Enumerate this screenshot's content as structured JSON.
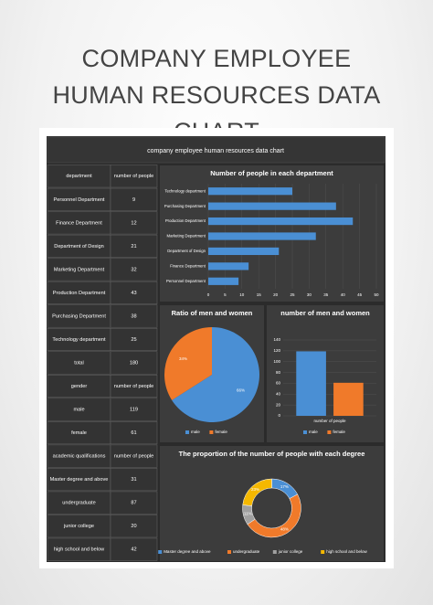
{
  "header": {
    "title": "COMPANY EMPLOYEE HUMAN RESOURCES DATA CHART"
  },
  "panel": {
    "title": "company employee human resources data chart"
  },
  "table": {
    "rows": [
      [
        "department",
        "number of people"
      ],
      [
        "Personnel Department",
        9
      ],
      [
        "Finance Department",
        12
      ],
      [
        "Department of Design",
        21
      ],
      [
        "Marketing Department",
        32
      ],
      [
        "Production Department",
        43
      ],
      [
        "Purchasing Department",
        38
      ],
      [
        "Technology department",
        25
      ],
      [
        "total",
        180
      ],
      [
        "gender",
        "number of people"
      ],
      [
        "male",
        119
      ],
      [
        "female",
        61
      ],
      [
        "academic qualifications",
        "number of people"
      ],
      [
        "Master degree and above",
        31
      ],
      [
        "undergraduate",
        87
      ],
      [
        "junior college",
        20
      ],
      [
        "high school and below",
        42
      ]
    ]
  },
  "chart_data": [
    {
      "type": "bar",
      "horizontal": true,
      "title": "Number of people in each department",
      "categories": [
        "Technology department",
        "Purchasing Department",
        "Production Department",
        "Marketing Department",
        "Department of Design",
        "Finance Department",
        "Personnel Department"
      ],
      "values": [
        25,
        38,
        43,
        32,
        21,
        12,
        9
      ],
      "color": "#4a8fd4",
      "xlim": [
        0,
        50
      ],
      "xticks": [
        0,
        5,
        10,
        15,
        20,
        25,
        30,
        35,
        40,
        45,
        50
      ],
      "grid": true
    },
    {
      "type": "pie",
      "title": "Ratio of men and women",
      "categories": [
        "male",
        "female"
      ],
      "values": [
        66,
        34
      ],
      "value_labels": [
        "66%",
        "34%"
      ],
      "colors": [
        "#4a8fd4",
        "#f07a2a"
      ],
      "legend": "bottom"
    },
    {
      "type": "bar",
      "title": "number of men and women",
      "categories": [
        "number of people"
      ],
      "series": [
        {
          "name": "male",
          "color": "#4a8fd4",
          "values": [
            119
          ]
        },
        {
          "name": "female",
          "color": "#f07a2a",
          "values": [
            61
          ]
        }
      ],
      "ylim": [
        0,
        140
      ],
      "yticks": [
        0,
        20,
        40,
        60,
        80,
        100,
        120,
        140
      ],
      "grid": true,
      "legend": "bottom"
    },
    {
      "type": "donut",
      "title": "The proportion of the number of people with each degree",
      "categories": [
        "Master degree and above",
        "undergraduate",
        "junior college",
        "high school and below"
      ],
      "values": [
        17,
        48,
        11,
        23
      ],
      "value_labels": [
        "17%",
        "48%",
        "11%",
        "23%"
      ],
      "colors": [
        "#4a8fd4",
        "#f07a2a",
        "#a0a0a0",
        "#f5b800"
      ],
      "legend": "bottom"
    }
  ]
}
